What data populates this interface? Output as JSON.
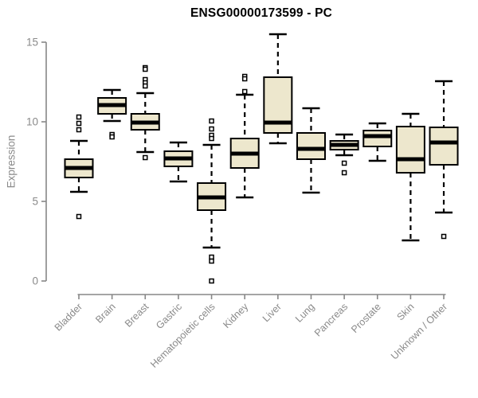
{
  "colors": {
    "background": "#ffffff",
    "title_text": "#000000",
    "axis_line": "#878787",
    "axis_text": "#8a8a8a",
    "box_fill": "#ede7cd",
    "box_border": "#000000",
    "outlier_fill": "#ffffff"
  },
  "chart_data": {
    "type": "boxplot",
    "title": "ENSG00000173599 - PC",
    "xlabel": "",
    "ylabel": "Expression",
    "ylim": [
      0,
      15.5
    ],
    "yticks": [
      0,
      5,
      10,
      15
    ],
    "grid": false,
    "legend": "none",
    "categories": [
      "Bladder",
      "Brain",
      "Breast",
      "Gastric",
      "Hematopoietic cells",
      "Kidney",
      "Liver",
      "Lung",
      "Pancreas",
      "Prostate",
      "Skin",
      "Unknown / Other"
    ],
    "boxes": [
      {
        "category": "Bladder",
        "whisker_low": 5.6,
        "q1": 6.5,
        "median": 7.1,
        "q3": 7.65,
        "whisker_high": 8.8,
        "outliers": [
          10.3,
          9.9,
          9.5,
          4.05
        ]
      },
      {
        "category": "Brain",
        "whisker_low": 10.05,
        "q1": 10.5,
        "median": 11.05,
        "q3": 11.5,
        "whisker_high": 12.0,
        "outliers": [
          9.2,
          9.05
        ]
      },
      {
        "category": "Breast",
        "whisker_low": 8.1,
        "q1": 9.5,
        "median": 9.95,
        "q3": 10.5,
        "whisker_high": 11.8,
        "outliers": [
          13.4,
          13.3,
          12.65,
          12.45,
          12.25,
          7.75
        ]
      },
      {
        "category": "Gastric",
        "whisker_low": 6.25,
        "q1": 7.2,
        "median": 7.7,
        "q3": 8.15,
        "whisker_high": 8.7,
        "outliers": []
      },
      {
        "category": "Hematopoietic cells",
        "whisker_low": 2.1,
        "q1": 4.45,
        "median": 5.25,
        "q3": 6.15,
        "whisker_high": 8.55,
        "outliers": [
          10.05,
          9.55,
          9.15,
          8.95,
          1.5,
          1.25,
          0.0
        ]
      },
      {
        "category": "Kidney",
        "whisker_low": 5.25,
        "q1": 7.1,
        "median": 8.0,
        "q3": 8.95,
        "whisker_high": 11.7,
        "outliers": [
          12.85,
          12.7,
          11.9
        ]
      },
      {
        "category": "Liver",
        "whisker_low": 8.65,
        "q1": 9.3,
        "median": 9.95,
        "q3": 12.8,
        "whisker_high": 15.5,
        "outliers": []
      },
      {
        "category": "Lung",
        "whisker_low": 5.55,
        "q1": 7.65,
        "median": 8.3,
        "q3": 9.3,
        "whisker_high": 10.85,
        "outliers": []
      },
      {
        "category": "Pancreas",
        "whisker_low": 7.9,
        "q1": 8.25,
        "median": 8.55,
        "q3": 8.8,
        "whisker_high": 9.2,
        "outliers": [
          7.4,
          6.8
        ]
      },
      {
        "category": "Prostate",
        "whisker_low": 7.55,
        "q1": 8.45,
        "median": 9.1,
        "q3": 9.45,
        "whisker_high": 9.9,
        "outliers": []
      },
      {
        "category": "Skin",
        "whisker_low": 2.55,
        "q1": 6.8,
        "median": 7.65,
        "q3": 9.7,
        "whisker_high": 10.5,
        "outliers": []
      },
      {
        "category": "Unknown / Other",
        "whisker_low": 4.3,
        "q1": 7.3,
        "median": 8.7,
        "q3": 9.65,
        "whisker_high": 12.55,
        "outliers": [
          2.8
        ]
      }
    ]
  }
}
